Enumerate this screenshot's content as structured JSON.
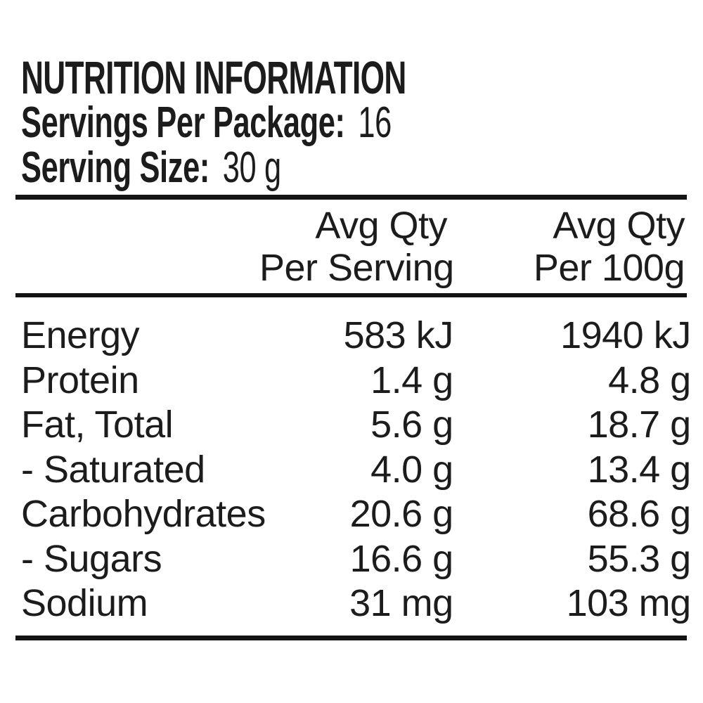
{
  "label": {
    "title": "NUTRITION INFORMATION",
    "servings_per_package_label": "Servings Per Package:",
    "servings_per_package_value": "16",
    "serving_size_label": "Serving Size:",
    "serving_size_value": "30 g"
  },
  "table": {
    "columns": [
      {
        "line1": "Avg Qty",
        "line2": "Per Serving"
      },
      {
        "line1": "Avg Qty",
        "line2": "Per 100g"
      }
    ],
    "rows": [
      {
        "nutrient": "Energy",
        "per_serving": "583 kJ",
        "per_100g": "1940 kJ"
      },
      {
        "nutrient": "Protein",
        "per_serving": "1.4 g",
        "per_100g": "4.8 g"
      },
      {
        "nutrient": "Fat, Total",
        "per_serving": "5.6 g",
        "per_100g": "18.7 g"
      },
      {
        "nutrient": "- Saturated",
        "per_serving": "4.0 g",
        "per_100g": "13.4 g"
      },
      {
        "nutrient": "Carbohydrates",
        "per_serving": "20.6 g",
        "per_100g": "68.6 g"
      },
      {
        "nutrient": "- Sugars",
        "per_serving": "16.6 g",
        "per_100g": "55.3 g"
      },
      {
        "nutrient": "Sodium",
        "per_serving": "31 mg",
        "per_100g": "103 mg"
      }
    ]
  },
  "colors": {
    "text": "#1c1c1c",
    "rule": "#141414",
    "background": "#ffffff"
  }
}
